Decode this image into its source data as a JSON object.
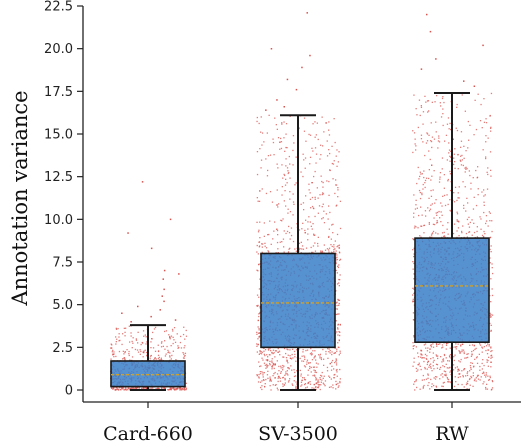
{
  "chart_data": {
    "type": "box",
    "ylabel": "Annotation variance",
    "xlabel": "",
    "ylim": [
      0,
      22.5
    ],
    "yticks": [
      "0",
      "2.5",
      "5.0",
      "7.5",
      "10.0",
      "12.5",
      "15.0",
      "17.5",
      "20.0",
      "22.5"
    ],
    "categories": [
      "Card-660",
      "SV-3500",
      "RW"
    ],
    "boxes": [
      {
        "name": "Card-660",
        "whisker_low": 0,
        "q1": 0.2,
        "median": 0.9,
        "q3": 1.7,
        "whisker_high": 3.8
      },
      {
        "name": "SV-3500",
        "whisker_low": 0,
        "q1": 2.5,
        "median": 5.1,
        "q3": 8.0,
        "whisker_high": 16.1
      },
      {
        "name": "RW",
        "whisker_low": 0,
        "q1": 2.8,
        "median": 6.1,
        "q3": 8.9,
        "whisker_high": 17.4
      }
    ],
    "outliers": [
      {
        "category": "Card-660",
        "values": [
          12.2,
          10.0,
          9.2,
          8.3,
          7.0,
          6.8,
          6.5,
          5.9,
          5.5,
          5.2,
          4.9,
          4.7,
          4.5,
          4.3,
          4.1,
          4.0
        ]
      },
      {
        "category": "SV-3500",
        "values": [
          22.1,
          20.0,
          19.6,
          18.9,
          18.2,
          17.6,
          17.0,
          16.6,
          16.4
        ]
      },
      {
        "category": "RW",
        "values": [
          22.0,
          21.0,
          20.2,
          19.4,
          18.8,
          18.1,
          17.8
        ]
      }
    ],
    "colors": {
      "box_fill": "#3a7fc8",
      "box_edge": "#1a1a1a",
      "median_line": "#d4a020",
      "points": "#d9534f"
    },
    "grid": false,
    "legend": "none"
  }
}
